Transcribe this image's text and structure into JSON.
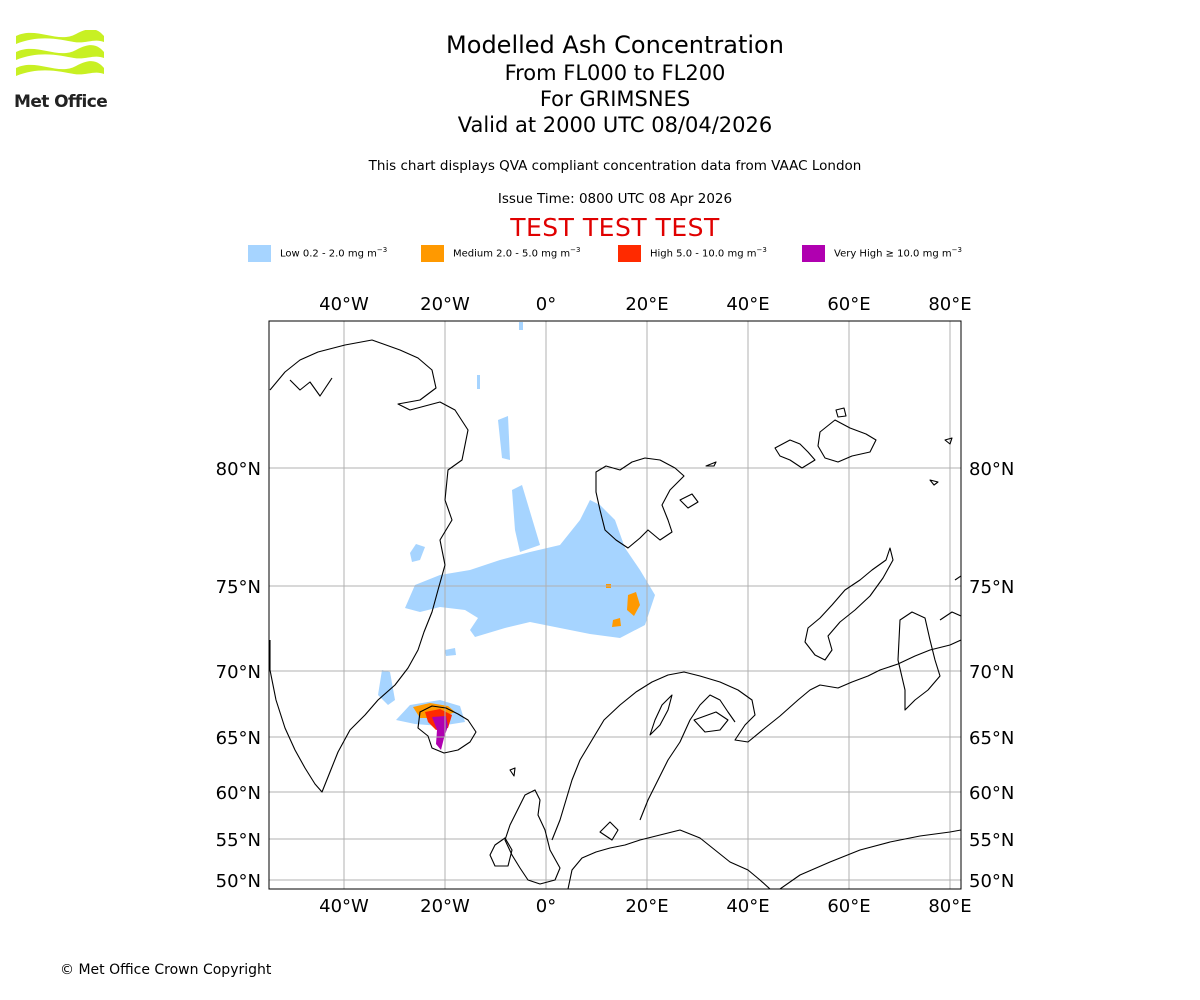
{
  "logo": {
    "text": "Met Office"
  },
  "title": {
    "line1": "Modelled Ash Concentration",
    "line2": "From FL000 to FL200",
    "line3": "For GRIMSNES",
    "line4": "Valid at 2000 UTC 08/04/2026"
  },
  "description": "This chart displays QVA compliant concentration data from VAAC London",
  "issue_time": "Issue Time: 0800 UTC 08 Apr 2026",
  "test_banner": "TEST TEST TEST",
  "legend": [
    {
      "label": "Low 0.2 - 2.0 mg m",
      "exp": "−3",
      "color": "#a6d4ff"
    },
    {
      "label": "Medium 2.0 - 5.0 mg m",
      "exp": "−3",
      "color": "#ff9900"
    },
    {
      "label": "High 5.0 - 10.0 mg m",
      "exp": "−3",
      "color": "#ff2a00"
    },
    {
      "label": "Very High  ≥  10.0 mg m",
      "exp": "−3",
      "color": "#b000b0"
    }
  ],
  "map": {
    "lon_ticks": [
      "40°W",
      "20°W",
      "0°",
      "20°E",
      "40°E",
      "60°E",
      "80°E"
    ],
    "lat_ticks": [
      "80°N",
      "75°N",
      "70°N",
      "65°N",
      "60°N",
      "55°N",
      "50°N"
    ],
    "gridlines": true,
    "coastline_color": "#000000",
    "grid_color": "#b0b0b0"
  },
  "copyright": "© Met Office Crown Copyright"
}
